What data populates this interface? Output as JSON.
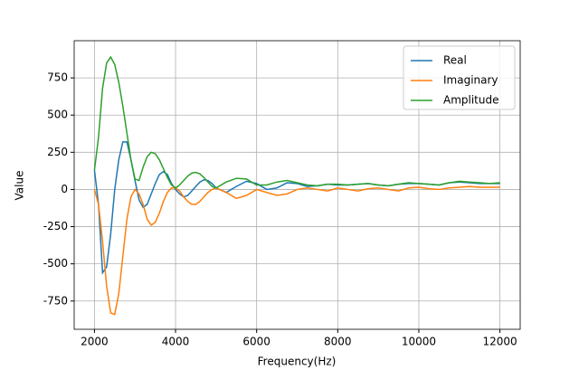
{
  "chart_data": {
    "type": "line",
    "x_label": "Frequency(Hz)",
    "y_label": "Value",
    "x": [
      2000,
      2100,
      2200,
      2300,
      2400,
      2500,
      2600,
      2700,
      2800,
      2900,
      3000,
      3100,
      3200,
      3300,
      3400,
      3500,
      3600,
      3700,
      3800,
      3900,
      4000,
      4100,
      4200,
      4300,
      4400,
      4500,
      4600,
      4700,
      4800,
      4900,
      5000,
      5250,
      5500,
      5750,
      6000,
      6250,
      6500,
      6750,
      7000,
      7250,
      7500,
      7750,
      8000,
      8250,
      8500,
      8750,
      9000,
      9250,
      9500,
      9750,
      10000,
      10250,
      10500,
      10750,
      11000,
      11250,
      11500,
      11750,
      12000
    ],
    "series": [
      {
        "name": "Real",
        "color": "#1f77b4",
        "values": [
          130,
          -100,
          -560,
          -520,
          -300,
          0,
          200,
          320,
          320,
          200,
          60,
          -70,
          -120,
          -100,
          -30,
          40,
          100,
          120,
          100,
          40,
          0,
          -30,
          -50,
          -40,
          -10,
          20,
          50,
          65,
          60,
          40,
          10,
          -20,
          20,
          55,
          40,
          0,
          10,
          45,
          40,
          20,
          25,
          35,
          30,
          30,
          35,
          40,
          30,
          25,
          35,
          40,
          40,
          35,
          30,
          45,
          50,
          45,
          40,
          40,
          40
        ]
      },
      {
        "name": "Imaginary",
        "color": "#ff7f0e",
        "values": [
          0,
          -100,
          -350,
          -650,
          -830,
          -840,
          -700,
          -450,
          -200,
          -50,
          0,
          -30,
          -100,
          -200,
          -240,
          -220,
          -160,
          -80,
          -20,
          10,
          10,
          -10,
          -50,
          -80,
          -100,
          -100,
          -80,
          -50,
          -20,
          0,
          10,
          -20,
          -60,
          -40,
          0,
          -20,
          -40,
          -30,
          0,
          10,
          0,
          -10,
          10,
          0,
          -10,
          5,
          10,
          0,
          -10,
          10,
          15,
          5,
          0,
          10,
          15,
          20,
          15,
          15,
          15
        ]
      },
      {
        "name": "Amplitude",
        "color": "#2ca02c",
        "values": [
          130,
          350,
          680,
          850,
          890,
          840,
          720,
          560,
          380,
          200,
          70,
          60,
          150,
          220,
          250,
          240,
          200,
          140,
          80,
          30,
          10,
          30,
          60,
          90,
          110,
          115,
          105,
          80,
          50,
          20,
          10,
          50,
          75,
          70,
          30,
          30,
          50,
          60,
          45,
          30,
          25,
          35,
          35,
          30,
          35,
          40,
          30,
          25,
          35,
          45,
          40,
          35,
          30,
          45,
          55,
          50,
          45,
          40,
          45
        ]
      }
    ],
    "xlim": [
      1500,
      12500
    ],
    "xticks": [
      2000,
      4000,
      6000,
      8000,
      10000,
      12000
    ],
    "ylim": [
      -940,
      1000
    ],
    "yticks": [
      -750,
      -500,
      -250,
      0,
      250,
      500,
      750
    ],
    "grid": true,
    "legend": "upper right"
  }
}
